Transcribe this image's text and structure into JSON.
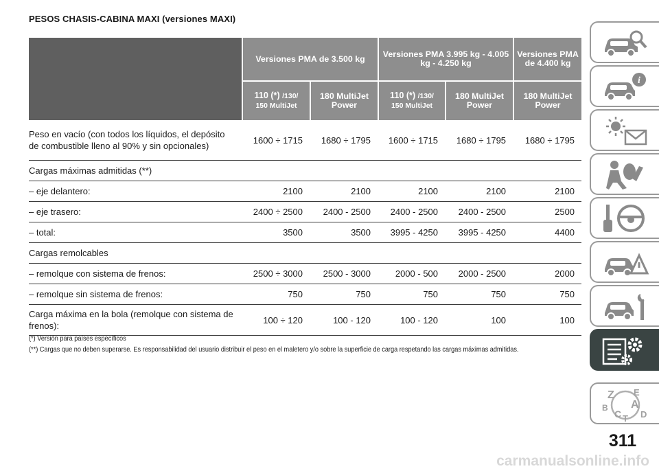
{
  "page_title": "PESOS CHASIS-CABINA MAXI (versiones MAXI)",
  "table": {
    "header_groups": [
      "Versiones PMA de 3.500 kg",
      "Versiones PMA 3.995 kg - 4.005 kg - 4.250 kg",
      "Versiones PMA de 4.400 kg"
    ],
    "subheaders": {
      "a_big": "110 (*)",
      "a_small": "/130/",
      "a_line2": "150 MultiJet",
      "b": "180 MultiJet Power",
      "c_big": "110 (*)",
      "c_small": "/130/",
      "c_line2": "150 MultiJet",
      "d": "180 MultiJet Power",
      "e": "180 MultiJet Power"
    },
    "rows": [
      {
        "label": "Peso en vacío (con todos los líquidos, el depósito de combustible lleno al 90% y sin opcionales)",
        "values": [
          "1600 ÷ 1715",
          "1680 ÷ 1795",
          "1600 ÷ 1715",
          "1680 ÷ 1795",
          "1680 ÷ 1795"
        ]
      },
      {
        "label": "Cargas máximas admitidas (**)",
        "values": [
          "",
          "",
          "",
          "",
          ""
        ]
      },
      {
        "label": "– eje delantero:",
        "values": [
          "2100",
          "2100",
          "2100",
          "2100",
          "2100"
        ]
      },
      {
        "label": "– eje trasero:",
        "values": [
          "2400 ÷ 2500",
          "2400 - 2500",
          "2400 - 2500",
          "2400 - 2500",
          "2500"
        ]
      },
      {
        "label": "– total:",
        "values": [
          "3500",
          "3500",
          "3995 - 4250",
          "3995 - 4250",
          "4400"
        ]
      },
      {
        "label": "Cargas remolcables",
        "values": [
          "",
          "",
          "",
          "",
          ""
        ]
      },
      {
        "label": "– remolque con sistema de frenos:",
        "values": [
          "2500 ÷ 3000",
          "2500 - 3000",
          "2000 - 500",
          "2000 - 2500",
          "2000"
        ]
      },
      {
        "label": "– remolque sin sistema de frenos:",
        "values": [
          "750",
          "750",
          "750",
          "750",
          "750"
        ]
      },
      {
        "label": "Carga máxima en la bola (remolque con sistema de frenos):",
        "values": [
          "100 ÷ 120",
          "100 - 120",
          "100 - 120",
          "100",
          "100"
        ]
      }
    ]
  },
  "notes": [
    "(*) Versión para países específicos",
    "(**) Cargas que no deben superarse. Es responsabilidad del usuario distribuir el peso en el maletero y/o sobre la superficie de carga respetando las cargas máximas admitidas."
  ],
  "sidebar": {
    "tabs": [
      {
        "icon": "car-magnifier-icon",
        "active": false
      },
      {
        "icon": "car-info-icon",
        "active": false
      },
      {
        "icon": "warning-light-envelope-icon",
        "active": false
      },
      {
        "icon": "airbag-person-icon",
        "active": false
      },
      {
        "icon": "steering-wheel-key-icon",
        "active": false
      },
      {
        "icon": "car-warning-triangle-icon",
        "active": false
      },
      {
        "icon": "car-wrench-icon",
        "active": false
      },
      {
        "icon": "technical-data-gears-icon",
        "active": true
      },
      {
        "icon": "alphabetical-index-icon",
        "active": false
      }
    ],
    "index_letters": [
      "Z",
      "E",
      "A",
      "B",
      "C",
      "T",
      "D"
    ]
  },
  "page_number": "311",
  "watermark": "carmanualsonline.info",
  "colors": {
    "header_gray": "#8e8e8e",
    "header_dark": "#5f5f5f",
    "tab_active": "#3a4443",
    "tab_border": "#9a9a9a"
  }
}
